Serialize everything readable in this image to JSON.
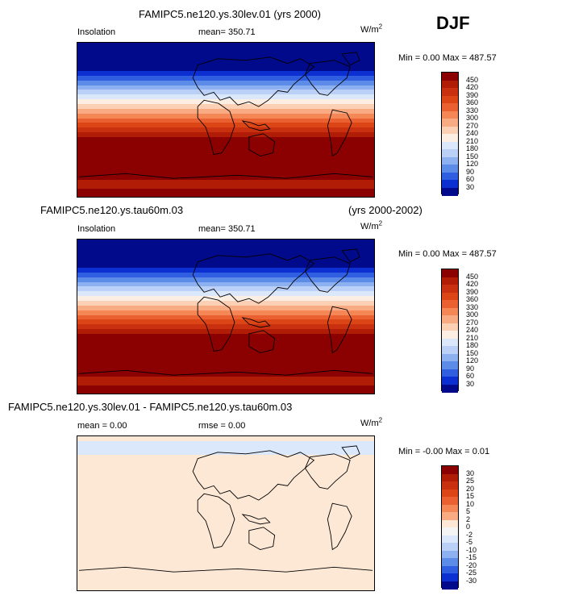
{
  "season": "DJF",
  "chart_data": [
    {
      "type": "heatmap",
      "title": "FAMIPC5.ne120.ys.30lev.01 (yrs 2000)",
      "subtitle_right": "",
      "field": "Insolation",
      "stat_text": "mean= 350.71",
      "units": "W/m",
      "units_sup": "2",
      "minmax_text": "Min =   0.00 Max = 487.57",
      "colorbar_labels": [
        "450",
        "420",
        "390",
        "360",
        "330",
        "300",
        "270",
        "240",
        "210",
        "180",
        "150",
        "120",
        "90",
        "60",
        "30"
      ],
      "colorbar_colors": [
        "#8b0000",
        "#b01c05",
        "#c8300f",
        "#dc4616",
        "#ea6030",
        "#f58656",
        "#f8aa82",
        "#fbd0b4",
        "#fdeee4",
        "#dbe7fb",
        "#bad0f7",
        "#8cb0f0",
        "#5d8ce8",
        "#2f5fe0",
        "#0b2fd0",
        "#000a8a"
      ],
      "band_colors": [
        "#000a8a",
        "#000a8a",
        "#000a8a",
        "#000a8a",
        "#000a8a",
        "#000a8a",
        "#0b2fd0",
        "#2f5fe0",
        "#5d8ce8",
        "#8cb0f0",
        "#bad0f7",
        "#dbe7fb",
        "#fdeee4",
        "#fbd0b4",
        "#f8aa82",
        "#f58656",
        "#ea6030",
        "#dc4616",
        "#c8300f",
        "#b01c05",
        "#8b0000",
        "#8b0000",
        "#8b0000",
        "#8b0000",
        "#8b0000",
        "#8b0000",
        "#8b0000",
        "#8b0000",
        "#8b0000",
        "#b01c05",
        "#b01c05",
        "#8b0000",
        "#8b0000"
      ]
    },
    {
      "type": "heatmap",
      "title": "FAMIPC5.ne120.ys.tau60m.03",
      "subtitle_right": "(yrs 2000-2002)",
      "field": "Insolation",
      "stat_text": "mean= 350.71",
      "units": "W/m",
      "units_sup": "2",
      "minmax_text": "Min =   0.00 Max = 487.57",
      "colorbar_labels": [
        "450",
        "420",
        "390",
        "360",
        "330",
        "300",
        "270",
        "240",
        "210",
        "180",
        "150",
        "120",
        "90",
        "60",
        "30"
      ],
      "colorbar_colors": [
        "#8b0000",
        "#b01c05",
        "#c8300f",
        "#dc4616",
        "#ea6030",
        "#f58656",
        "#f8aa82",
        "#fbd0b4",
        "#fdeee4",
        "#dbe7fb",
        "#bad0f7",
        "#8cb0f0",
        "#5d8ce8",
        "#2f5fe0",
        "#0b2fd0",
        "#000a8a"
      ],
      "band_colors": [
        "#000a8a",
        "#000a8a",
        "#000a8a",
        "#000a8a",
        "#000a8a",
        "#000a8a",
        "#0b2fd0",
        "#2f5fe0",
        "#5d8ce8",
        "#8cb0f0",
        "#bad0f7",
        "#dbe7fb",
        "#fdeee4",
        "#fbd0b4",
        "#f8aa82",
        "#f58656",
        "#ea6030",
        "#dc4616",
        "#c8300f",
        "#b01c05",
        "#8b0000",
        "#8b0000",
        "#8b0000",
        "#8b0000",
        "#8b0000",
        "#8b0000",
        "#8b0000",
        "#8b0000",
        "#8b0000",
        "#b01c05",
        "#b01c05",
        "#8b0000",
        "#8b0000"
      ]
    },
    {
      "type": "heatmap",
      "title": "FAMIPC5.ne120.ys.30lev.01 - FAMIPC5.ne120.ys.tau60m.03",
      "subtitle_right": "",
      "field": "mean =    0.00",
      "stat_text": "rmse =    0.00",
      "units": "W/m",
      "units_sup": "2",
      "minmax_text": "Min =  -0.00 Max =   0.01",
      "colorbar_labels": [
        "30",
        "25",
        "20",
        "15",
        "10",
        "5",
        "2",
        "0",
        "-2",
        "-5",
        "-10",
        "-15",
        "-20",
        "-25",
        "-30"
      ],
      "colorbar_colors": [
        "#8b0000",
        "#b01c05",
        "#c8300f",
        "#dc4616",
        "#ea6030",
        "#f58656",
        "#f8aa82",
        "#fde8d6",
        "#f4f4f4",
        "#dbe7fb",
        "#bad0f7",
        "#8cb0f0",
        "#5d8ce8",
        "#2f5fe0",
        "#0b2fd0",
        "#000a8a"
      ],
      "band_colors": [
        "#fde8d6",
        "#dbe7fb",
        "#dbe7fb",
        "#dbe7fb",
        "#fde8d6",
        "#fde8d6",
        "#fde8d6",
        "#fde8d6",
        "#fde8d6",
        "#fde8d6",
        "#fde8d6",
        "#fde8d6",
        "#fde8d6",
        "#fde8d6",
        "#fde8d6",
        "#fde8d6",
        "#fde8d6",
        "#fde8d6",
        "#fde8d6",
        "#fde8d6",
        "#fde8d6",
        "#fde8d6",
        "#fde8d6",
        "#fde8d6",
        "#fde8d6",
        "#fde8d6",
        "#fde8d6",
        "#fde8d6",
        "#fde8d6",
        "#fde8d6",
        "#fde8d6",
        "#fde8d6",
        "#fde8d6"
      ]
    }
  ]
}
